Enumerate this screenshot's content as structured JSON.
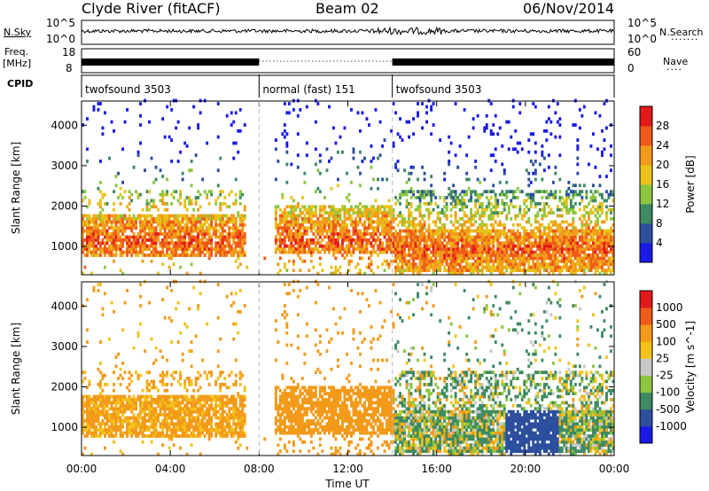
{
  "header": {
    "station": "Clyde River (fitACF)",
    "beam": "Beam 02",
    "date": "06/Nov/2014"
  },
  "panels": {
    "nsky_label": "N.Sky",
    "nsearch_label": "N.Search",
    "freq_label_1": "Freq.",
    "freq_label_2": "[MHz]",
    "nave_label": "Nave",
    "cpid_label": "CPID",
    "nsky_ticks": [
      "10^5",
      "10^0"
    ],
    "nsearch_ticks": [
      "10^5",
      "10^0"
    ],
    "freq_ticks": [
      "18",
      "8"
    ],
    "nave_ticks": [
      "60",
      "0"
    ],
    "cpid_segments": [
      {
        "label": "twofsound 3503",
        "start_h": 0,
        "end_h": 8
      },
      {
        "label": "normal (fast) 151",
        "start_h": 8,
        "end_h": 14
      },
      {
        "label": "twofsound 3503",
        "start_h": 14,
        "end_h": 24
      }
    ]
  },
  "colors": {
    "power_scale": [
      "#1a1ae6",
      "#2c4f9e",
      "#3f8a62",
      "#8cc63f",
      "#e8c21a",
      "#f39a1a",
      "#ef5a1a",
      "#e31a1a"
    ],
    "velocity_scale": [
      "#e31a1a",
      "#ee5a1a",
      "#f39a1a",
      "#f3c21a",
      "#c8c8c8",
      "#8cc63f",
      "#3f8a62",
      "#2c4f9e",
      "#1a1ae6"
    ]
  },
  "chart_data": [
    {
      "type": "heatmap",
      "title": "",
      "xlabel": "Time UT",
      "ylabel": "Slant Range [km]",
      "xlim_hours": [
        0,
        24
      ],
      "ylim": [
        300,
        4600
      ],
      "x_tick_labels": [
        "00:00",
        "04:00",
        "08:00",
        "12:00",
        "16:00",
        "20:00",
        "00:00"
      ],
      "y_tick_labels": [
        "1000",
        "2000",
        "3000",
        "4000"
      ],
      "colorbar_label": "Power [dB]",
      "colorbar_ticks": [
        "28",
        "24",
        "20",
        "16",
        "12",
        "8",
        "4"
      ],
      "mode_change_lines_h": [
        8,
        14
      ]
    },
    {
      "type": "heatmap",
      "title": "",
      "xlabel": "Time UT",
      "ylabel": "Slant Range [km]",
      "xlim_hours": [
        0,
        24
      ],
      "ylim": [
        300,
        4600
      ],
      "x_tick_labels": [
        "00:00",
        "04:00",
        "08:00",
        "12:00",
        "16:00",
        "20:00",
        "00:00"
      ],
      "y_tick_labels": [
        "1000",
        "2000",
        "3000",
        "4000"
      ],
      "colorbar_label": "Velocity [m s^-1]",
      "colorbar_ticks": [
        "1000",
        "500",
        "100",
        "25",
        "-25",
        "-100",
        "-500",
        "-1000"
      ],
      "mode_change_lines_h": [
        8,
        14
      ]
    }
  ],
  "xaxis": {
    "title": "Time UT",
    "tick_labels": [
      "00:00",
      "04:00",
      "08:00",
      "12:00",
      "16:00",
      "20:00",
      "00:00"
    ]
  }
}
